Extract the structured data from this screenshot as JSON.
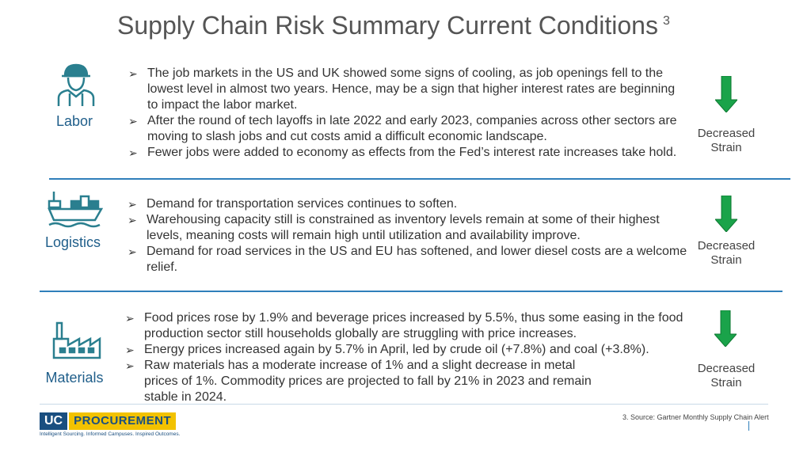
{
  "title": {
    "text": "Supply Chain Risk Summary Current Conditions",
    "superscript": "3"
  },
  "sections": [
    {
      "label": "Labor",
      "icon": "worker-icon",
      "bullets": [
        "The job markets in the US and UK showed some signs of cooling, as job openings fell to the lowest level in almost two years. Hence, may be a sign that higher interest rates are beginning to impact the labor market.",
        "After the round of tech layoffs in late 2022 and early 2023, companies across other sectors are moving to slash jobs and cut costs amid a difficult economic landscape.",
        "Fewer jobs were added to economy as effects from the Fed’s interest rate increases take hold."
      ],
      "status_line1": "Decreased",
      "status_line2": "Strain"
    },
    {
      "label": "Logistics",
      "icon": "cargo-ship-icon",
      "bullets": [
        "Demand for transportation services continues to soften.",
        "Warehousing capacity still is constrained as inventory levels remain at some of their highest levels, meaning costs will remain high until utilization and availability improve.",
        "Demand for road services in the US and EU has softened, and lower diesel costs are a welcome relief."
      ],
      "status_line1": "Decreased",
      "status_line2": "Strain"
    },
    {
      "label": "Materials",
      "icon": "factory-icon",
      "bullets": [
        "Food prices rose by 1.9% and beverage prices increased by 5.5%, thus some easing in the food production sector still households globally are struggling with price increases.",
        "Energy prices increased again by 5.7% in April, led by crude oil (+7.8%) and coal (+3.8%).",
        "Raw materials has a moderate increase of 1% and a slight decrease in metal prices of 1%. Commodity prices are projected to fall by 21% in 2023 and remain stable in 2024."
      ],
      "status_line1": "Decreased",
      "status_line2": "Strain"
    }
  ],
  "logo": {
    "uc": "UC",
    "procurement": "PROCUREMENT",
    "tagline": "Intelligent Sourcing. Informed Campuses. Inspired Outcomes."
  },
  "footnote": "3. Source: Gartner  Monthly Supply Chain Alert",
  "colors": {
    "accent": "#2f7fba",
    "label": "#1f5e8a",
    "icon": "#2a7f8f",
    "arrow": "#1aa34a"
  }
}
